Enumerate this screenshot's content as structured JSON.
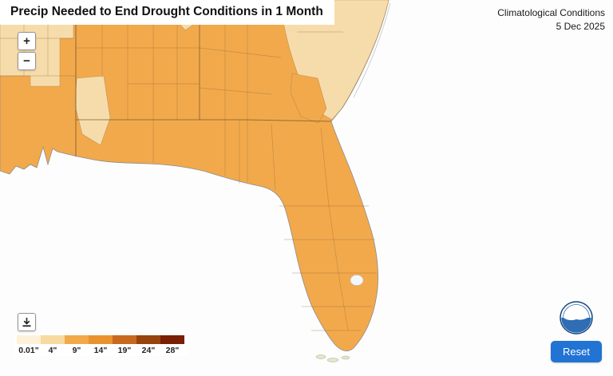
{
  "header": {
    "title": "Precip Needed to End Drought Conditions in 1 Month",
    "subtitle_line1": "Climatological Conditions",
    "subtitle_line2": "5 Dec 2025"
  },
  "map_controls": {
    "zoom_in_label": "+",
    "zoom_out_label": "−",
    "reset_label": "Reset"
  },
  "legend": {
    "labels": [
      "0.01\"",
      "4\"",
      "9\"",
      "14\"",
      "19\"",
      "24\"",
      "28\""
    ],
    "colors": [
      "#fdf2d9",
      "#f8d9a0",
      "#f2a94a",
      "#e9932f",
      "#c76a1f",
      "#97430e",
      "#7a1e05"
    ]
  },
  "map": {
    "ocean": "#fdfdfe",
    "land": "#f2a94c",
    "land_light": "#f7dcab",
    "lake": "#f2f7fa"
  },
  "ui": {
    "accent": "#2173d4"
  },
  "logo": {
    "name": "NOAA"
  }
}
